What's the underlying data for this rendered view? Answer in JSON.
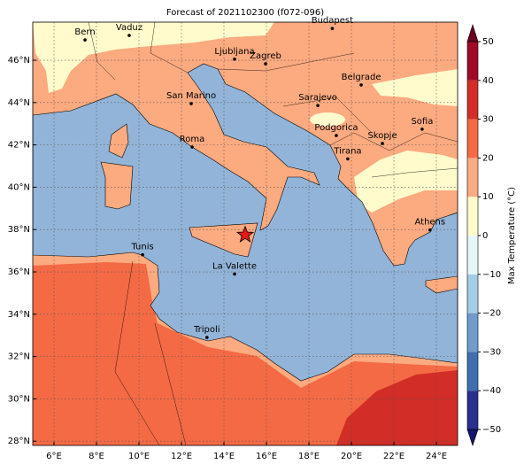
{
  "chart_data": {
    "type": "map",
    "title": "Forecast of 2021102300 (f072-096)",
    "xlim": [
      5,
      25
    ],
    "ylim": [
      27.8,
      47.8
    ],
    "xticks": [
      {
        "value": 6,
        "label": "6°E"
      },
      {
        "value": 8,
        "label": "8°E"
      },
      {
        "value": 10,
        "label": "10°E"
      },
      {
        "value": 12,
        "label": "12°E"
      },
      {
        "value": 14,
        "label": "14°E"
      },
      {
        "value": 16,
        "label": "16°E"
      },
      {
        "value": 18,
        "label": "18°E"
      },
      {
        "value": 20,
        "label": "20°E"
      },
      {
        "value": 22,
        "label": "22°E"
      },
      {
        "value": 24,
        "label": "24°E"
      }
    ],
    "yticks": [
      {
        "value": 28,
        "label": "28°N"
      },
      {
        "value": 30,
        "label": "30°N"
      },
      {
        "value": 32,
        "label": "32°N"
      },
      {
        "value": 34,
        "label": "34°N"
      },
      {
        "value": 36,
        "label": "36°N"
      },
      {
        "value": 38,
        "label": "38°N"
      },
      {
        "value": 40,
        "label": "40°N"
      },
      {
        "value": 42,
        "label": "42°N"
      },
      {
        "value": 44,
        "label": "44°N"
      },
      {
        "value": 46,
        "label": "46°N"
      }
    ],
    "grid": true,
    "cities": [
      {
        "name": "Bern",
        "lon": 7.46,
        "lat": 46.96
      },
      {
        "name": "Vaduz",
        "lon": 9.54,
        "lat": 47.17
      },
      {
        "name": "Budapest",
        "lon": 19.1,
        "lat": 47.5
      },
      {
        "name": "Ljubljana",
        "lon": 14.5,
        "lat": 46.05
      },
      {
        "name": "Zagreb",
        "lon": 15.96,
        "lat": 45.83
      },
      {
        "name": "Belgrade",
        "lon": 20.46,
        "lat": 44.83
      },
      {
        "name": "San Marino",
        "lon": 12.46,
        "lat": 43.95
      },
      {
        "name": "Sarajevo",
        "lon": 18.42,
        "lat": 43.86
      },
      {
        "name": "Sofia",
        "lon": 23.33,
        "lat": 42.74
      },
      {
        "name": "Podgorica",
        "lon": 19.29,
        "lat": 42.44
      },
      {
        "name": "Skopje",
        "lon": 21.46,
        "lat": 42.07
      },
      {
        "name": "Roma",
        "lon": 12.5,
        "lat": 41.9
      },
      {
        "name": "Tirana",
        "lon": 19.83,
        "lat": 41.34
      },
      {
        "name": "Athens",
        "lon": 23.7,
        "lat": 37.98
      },
      {
        "name": "Tunis",
        "lon": 10.17,
        "lat": 36.81
      },
      {
        "name": "La Valette",
        "lon": 14.5,
        "lat": 35.9
      },
      {
        "name": "Tripoli",
        "lon": 13.2,
        "lat": 32.9
      }
    ],
    "marker": {
      "lon": 15.0,
      "lat": 37.75,
      "color": "#e41a1c"
    },
    "colorbar": {
      "label": "Max Temperature (°C)",
      "ticks": [
        {
          "value": -50,
          "label": "−50"
        },
        {
          "value": -40,
          "label": "−40"
        },
        {
          "value": -30,
          "label": "−30"
        },
        {
          "value": -20,
          "label": "−20"
        },
        {
          "value": -10,
          "label": "−10"
        },
        0,
        10,
        20,
        30,
        40,
        50
      ],
      "colors": [
        "#2b2f8f",
        "#3f6fb0",
        "#6f9ccc",
        "#a3cde6",
        "#e6f5f7",
        "#fffbcc",
        "#fcaa80",
        "#f46a45",
        "#d22d27",
        "#a10a26"
      ],
      "under": "#141470",
      "over": "#6a0020"
    }
  }
}
